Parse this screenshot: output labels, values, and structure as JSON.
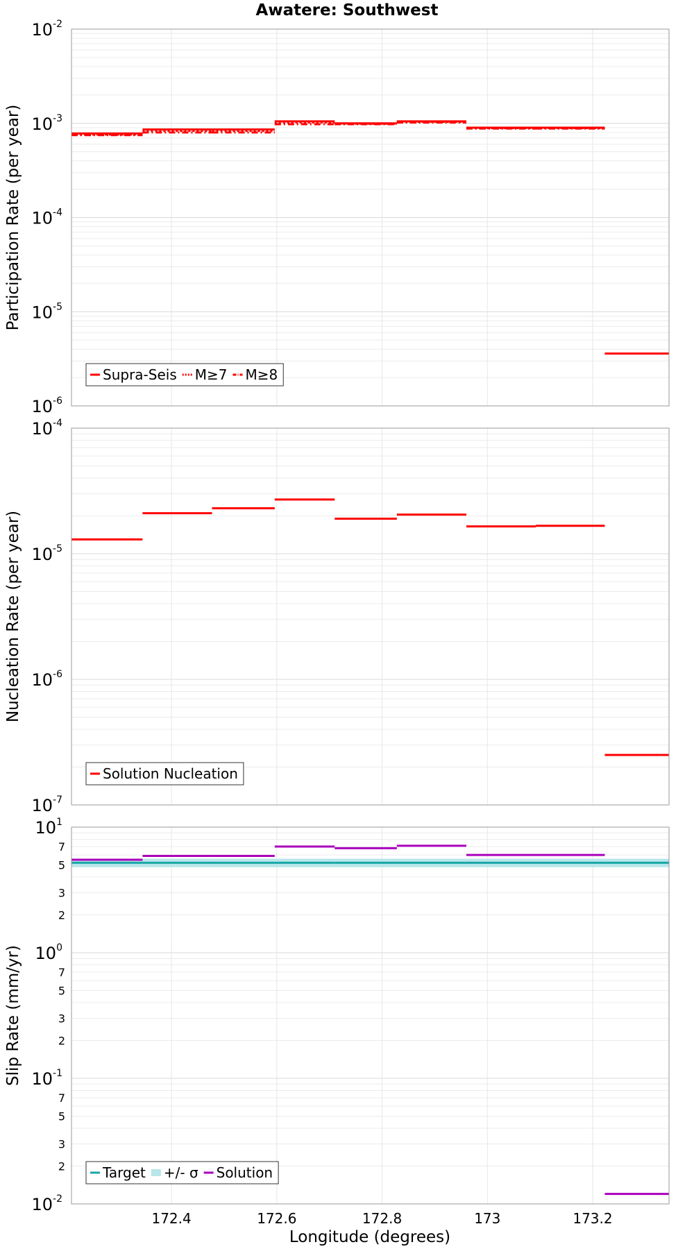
{
  "chart_data": {
    "type": "line",
    "title": "Awatere: Southwest",
    "xlabel": "Longitude (degrees)",
    "xlim": [
      172.21,
      173.345
    ],
    "xticks": [
      172.4,
      172.6,
      172.8,
      173,
      173.2
    ],
    "xtick_labels": [
      "172.4",
      "172.6",
      "172.8",
      "173",
      "173.2"
    ],
    "segments_x": [
      [
        172.21,
        172.345
      ],
      [
        172.345,
        172.477
      ],
      [
        172.477,
        172.596
      ],
      [
        172.596,
        172.71
      ],
      [
        172.71,
        172.828
      ],
      [
        172.828,
        172.96
      ],
      [
        172.96,
        173.092
      ],
      [
        173.092,
        173.223
      ],
      [
        173.223,
        173.345
      ]
    ],
    "panels": [
      {
        "id": "participation",
        "ylabel": "Participation Rate (per year)",
        "yscale": "log",
        "ylim": [
          1e-06,
          0.01
        ],
        "major_ticks": [
          {
            "value": 0.01,
            "base": "10",
            "exp": "-2"
          },
          {
            "value": 0.001,
            "base": "10",
            "exp": "-3"
          },
          {
            "value": 0.0001,
            "base": "10",
            "exp": "-4"
          },
          {
            "value": 1e-05,
            "base": "10",
            "exp": "-5"
          },
          {
            "value": 1e-06,
            "base": "10",
            "exp": "-6"
          }
        ],
        "minor_labels": [],
        "band": null,
        "series": [
          {
            "name": "Supra-Seis",
            "color": "#ff0000",
            "dash": "solid",
            "values": [
              0.00078,
              0.00086,
              0.00086,
              0.00105,
              0.001,
              0.00105,
              0.0009,
              0.0009,
              3.6e-06
            ]
          },
          {
            "name": "M≥7",
            "color": "#ff0000",
            "dash": "dotted",
            "values": [
              0.00076,
              0.00083,
              0.00083,
              0.00102,
              0.00099,
              0.00104,
              0.00089,
              0.00089,
              null
            ]
          },
          {
            "name": "M≥8",
            "color": "#ff0000",
            "dash": "dashdot",
            "values": [
              0.00075,
              0.0008,
              0.0008,
              0.00098,
              0.00098,
              0.00102,
              0.00088,
              0.00088,
              null
            ]
          }
        ],
        "legend": [
          {
            "label": "Supra-Seis",
            "color": "#ff0000",
            "kind": "line",
            "dash": "solid"
          },
          {
            "label": "M≥7",
            "color": "#ff0000",
            "kind": "line",
            "dash": "dotted"
          },
          {
            "label": "M≥8",
            "color": "#ff0000",
            "kind": "line",
            "dash": "dashdot"
          }
        ]
      },
      {
        "id": "nucleation",
        "ylabel": "Nucleation Rate (per year)",
        "yscale": "log",
        "ylim": [
          1e-07,
          0.0001
        ],
        "major_ticks": [
          {
            "value": 0.0001,
            "base": "10",
            "exp": "-4"
          },
          {
            "value": 1e-05,
            "base": "10",
            "exp": "-5"
          },
          {
            "value": 1e-06,
            "base": "10",
            "exp": "-6"
          },
          {
            "value": 1e-07,
            "base": "10",
            "exp": "-7"
          }
        ],
        "minor_labels": [],
        "band": null,
        "series": [
          {
            "name": "Solution Nucleation",
            "color": "#ff0000",
            "dash": "solid",
            "values": [
              1.3e-05,
              2.1e-05,
              2.3e-05,
              2.7e-05,
              1.9e-05,
              2.05e-05,
              1.65e-05,
              1.67e-05,
              2.5e-07
            ]
          }
        ],
        "legend": [
          {
            "label": "Solution Nucleation",
            "color": "#ff0000",
            "kind": "line",
            "dash": "solid"
          }
        ]
      },
      {
        "id": "slip",
        "ylabel": "Slip Rate (mm/yr)",
        "yscale": "log",
        "ylim": [
          0.01,
          10
        ],
        "major_ticks": [
          {
            "value": 10,
            "base": "10",
            "exp": "1"
          },
          {
            "value": 1,
            "base": "10",
            "exp": "0"
          },
          {
            "value": 0.1,
            "base": "10",
            "exp": "-1"
          },
          {
            "value": 0.01,
            "base": "10",
            "exp": "-2"
          }
        ],
        "minor_labels": [
          {
            "value": 7,
            "label": "7"
          },
          {
            "value": 5,
            "label": "5"
          },
          {
            "value": 3,
            "label": "3"
          },
          {
            "value": 2,
            "label": "2"
          },
          {
            "value": 0.7,
            "label": "7"
          },
          {
            "value": 0.5,
            "label": "5"
          },
          {
            "value": 0.3,
            "label": "3"
          },
          {
            "value": 0.2,
            "label": "2"
          },
          {
            "value": 0.07,
            "label": "7"
          },
          {
            "value": 0.05,
            "label": "5"
          },
          {
            "value": 0.03,
            "label": "3"
          },
          {
            "value": 0.02,
            "label": "2"
          }
        ],
        "band": {
          "name": "+/- σ",
          "color": "#b8e6ea",
          "low": 4.8,
          "high": 5.6
        },
        "series": [
          {
            "name": "Target",
            "color": "#1aa6a6",
            "dash": "solid",
            "values": [
              5.2,
              5.2,
              5.2,
              5.2,
              5.2,
              5.2,
              5.2,
              5.2,
              5.2
            ]
          },
          {
            "name": "Solution",
            "color": "#aa00bb",
            "dash": "solid",
            "values": [
              5.5,
              5.9,
              5.9,
              7.0,
              6.8,
              7.1,
              6.0,
              6.0,
              0.012
            ]
          }
        ],
        "legend": [
          {
            "label": "Target",
            "color": "#1aa6a6",
            "kind": "line",
            "dash": "solid"
          },
          {
            "label": "+/- σ",
            "color": "#b8e6ea",
            "kind": "box",
            "dash": "solid"
          },
          {
            "label": "Solution",
            "color": "#aa00bb",
            "kind": "line",
            "dash": "solid"
          }
        ]
      }
    ]
  }
}
